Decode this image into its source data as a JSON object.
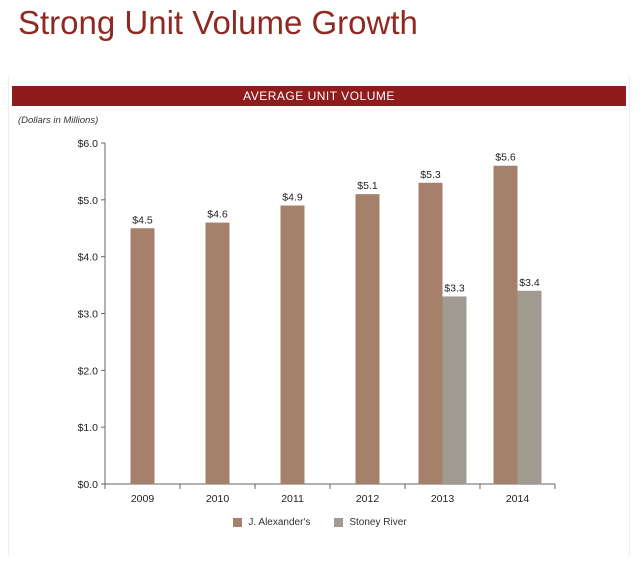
{
  "title": "Strong Unit Volume Growth",
  "banner": "AVERAGE UNIT VOLUME",
  "units_note": "(Dollars in Millions)",
  "colors": {
    "title": "#8f2a22",
    "banner": "#8e1c1c",
    "series_0": "#a5806a",
    "series_1": "#a19a91"
  },
  "chart_data": {
    "type": "bar",
    "categories": [
      "2009",
      "2010",
      "2011",
      "2012",
      "2013",
      "2014"
    ],
    "series": [
      {
        "name": "J. Alexander's",
        "values": [
          4.5,
          4.6,
          4.9,
          5.1,
          5.3,
          5.6
        ],
        "labels": [
          "$4.5",
          "$4.6",
          "$4.9",
          "$5.1",
          "$5.3",
          "$5.6"
        ]
      },
      {
        "name": "Stoney River",
        "values": [
          null,
          null,
          null,
          null,
          3.3,
          3.4
        ],
        "labels": [
          "",
          "",
          "",
          "",
          "$3.3",
          "$3.4"
        ]
      }
    ],
    "ylim": [
      0,
      6
    ],
    "yticks": [
      0,
      1,
      2,
      3,
      4,
      5,
      6
    ],
    "ytick_labels": [
      "$0.0",
      "$1.0",
      "$2.0",
      "$3.0",
      "$4.0",
      "$5.0",
      "$6.0"
    ],
    "grid": false,
    "legend": "bottom"
  }
}
